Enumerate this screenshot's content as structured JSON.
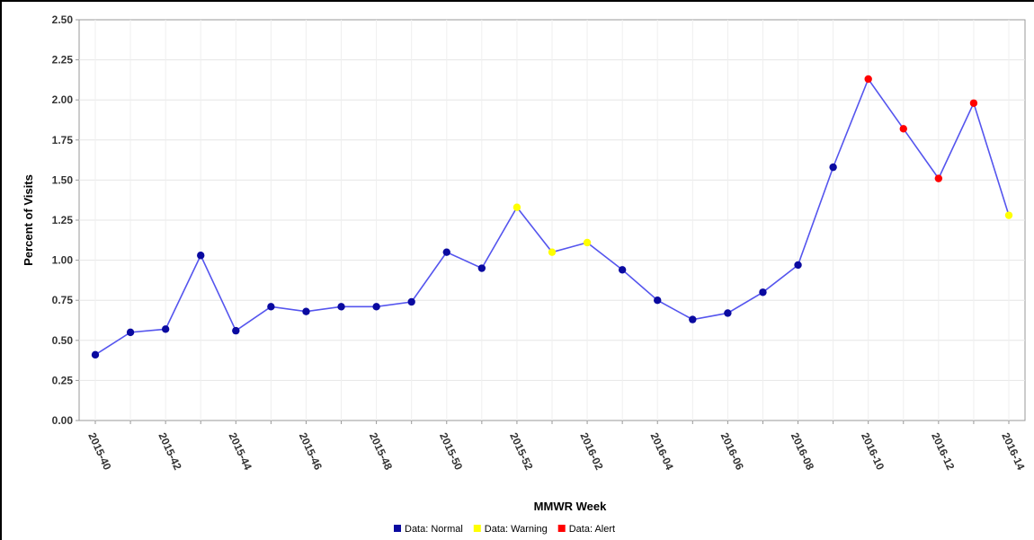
{
  "chart_data": {
    "type": "line",
    "xlabel": "MMWR Week",
    "ylabel": "Percent of Visits",
    "ylim": [
      0,
      2.5
    ],
    "yticks": [
      "0.00",
      "0.25",
      "0.50",
      "0.75",
      "1.00",
      "1.25",
      "1.50",
      "1.75",
      "2.00",
      "2.25",
      "2.50"
    ],
    "x_tick_labels": [
      "2015-40",
      "2015-42",
      "2015-44",
      "2015-46",
      "2015-48",
      "2015-50",
      "2015-52",
      "2016-02",
      "2016-04",
      "2016-06",
      "2016-08",
      "2016-10",
      "2016-12",
      "2016-14"
    ],
    "categories": [
      "2015-40",
      "2015-41",
      "2015-42",
      "2015-43",
      "2015-44",
      "2015-45",
      "2015-46",
      "2015-47",
      "2015-48",
      "2015-49",
      "2015-50",
      "2015-51",
      "2015-52",
      "2016-01",
      "2016-02",
      "2016-03",
      "2016-04",
      "2016-05",
      "2016-06",
      "2016-07",
      "2016-08",
      "2016-09",
      "2016-10",
      "2016-11",
      "2016-12",
      "2016-13",
      "2016-14"
    ],
    "values": [
      0.41,
      0.55,
      0.57,
      1.03,
      0.56,
      0.71,
      0.68,
      0.71,
      0.71,
      0.74,
      1.05,
      0.95,
      1.33,
      1.05,
      1.11,
      0.94,
      0.75,
      0.63,
      0.67,
      0.8,
      0.97,
      1.58,
      2.13,
      1.82,
      1.51,
      1.98,
      1.28
    ],
    "status": [
      "normal",
      "normal",
      "normal",
      "normal",
      "normal",
      "normal",
      "normal",
      "normal",
      "normal",
      "normal",
      "normal",
      "normal",
      "warning",
      "warning",
      "warning",
      "normal",
      "normal",
      "normal",
      "normal",
      "normal",
      "normal",
      "normal",
      "alert",
      "alert",
      "alert",
      "alert",
      "warning"
    ],
    "legend": [
      {
        "key": "normal",
        "label": "Data: Normal",
        "color": "#0a0aa0"
      },
      {
        "key": "warning",
        "label": "Data: Warning",
        "color": "#ffff00"
      },
      {
        "key": "alert",
        "label": "Data: Alert",
        "color": "#ff0000"
      }
    ],
    "line_color": "#5555ee",
    "grid": true,
    "legend_position": "bottom"
  }
}
